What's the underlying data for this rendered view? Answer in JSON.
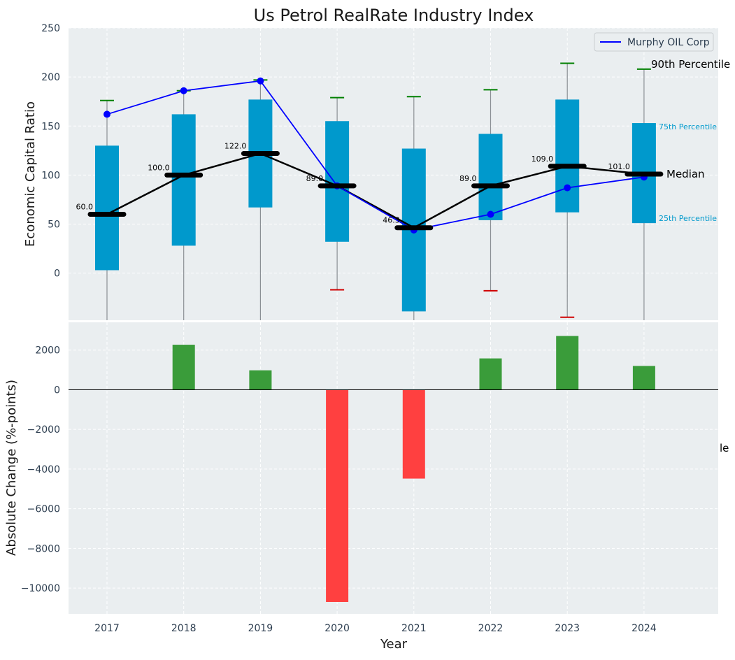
{
  "chart_data": [
    {
      "type": "box",
      "title": "Us Petrol RealRate Industry Index",
      "xlabel": "",
      "ylabel": "Economic Capital Ratio",
      "ylim": [
        -48,
        250
      ],
      "yticks": [
        0,
        50,
        100,
        150,
        200,
        250
      ],
      "categories": [
        "2017",
        "2018",
        "2019",
        "2020",
        "2021",
        "2022",
        "2023",
        "2024"
      ],
      "p25": [
        3,
        28,
        67,
        32,
        -39,
        54,
        62,
        51
      ],
      "p75": [
        130,
        162,
        177,
        155,
        127,
        142,
        177,
        153
      ],
      "median": [
        60.0,
        100.0,
        122.0,
        89.0,
        46.3,
        89.0,
        109.0,
        101.0
      ],
      "median_labels": [
        "60.0",
        "100.0",
        "122.0",
        "89.0",
        "46.3",
        "89.0",
        "109.0",
        "101.0"
      ],
      "p90": [
        176,
        186,
        197,
        179,
        180,
        187,
        214,
        208
      ],
      "p10": [
        null,
        null,
        null,
        -17,
        null,
        -18,
        -45,
        null
      ],
      "series": [
        {
          "name": "Murphy OIL Corp",
          "values": [
            162,
            186,
            196,
            89,
            44,
            60,
            87,
            98
          ],
          "color": "#0000ff"
        }
      ],
      "legend": [
        "Murphy OIL Corp"
      ],
      "annotations": {
        "p90": "90th Percentile",
        "p75": "75th Percentile",
        "median": "Median",
        "p25": "25th Percentile"
      },
      "colors": {
        "box": "#0099cc",
        "median": "#000000",
        "whisker_top": "#008000",
        "whisker_bottom": "#d00000",
        "panel": "#eaeef0"
      }
    },
    {
      "type": "bar",
      "xlabel": "Year",
      "ylabel": "Absolute Change (%-points)",
      "ylim": [
        -11300,
        3400
      ],
      "yticks": [
        2000,
        0,
        -2000,
        -4000,
        -6000,
        -8000,
        -10000
      ],
      "ytick_labels": [
        "2000",
        "0",
        "−2000",
        "−4000",
        "−6000",
        "−8000",
        "−10000"
      ],
      "categories": [
        "2017",
        "2018",
        "2019",
        "2020",
        "2021",
        "2022",
        "2023",
        "2024"
      ],
      "values": [
        0,
        2270,
        980,
        -10700,
        -4480,
        1580,
        2710,
        1200
      ],
      "colors": {
        "positive": "#3a9c3a",
        "negative": "#ff4040"
      },
      "stray_text": "le"
    }
  ]
}
